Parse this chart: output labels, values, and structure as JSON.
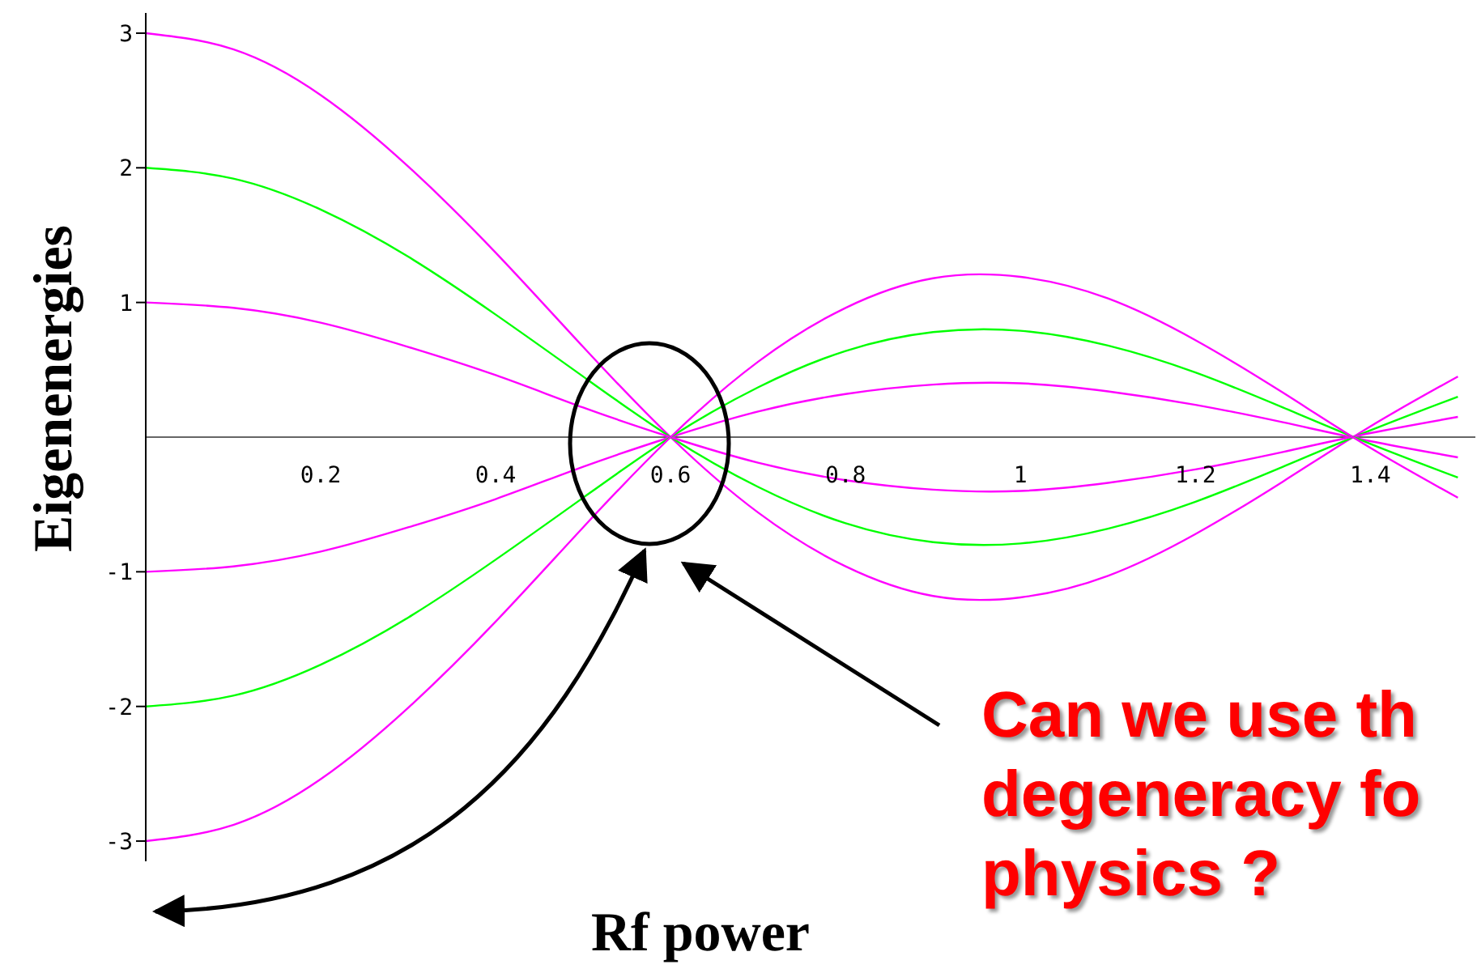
{
  "chart_data": {
    "type": "line",
    "xlabel": "Rf power",
    "ylabel": "Eigenenergies",
    "x": [
      0,
      0.1,
      0.2,
      0.3,
      0.4,
      0.5,
      0.6,
      0.7,
      0.8,
      0.9,
      1.0,
      1.1,
      1.2,
      1.3,
      1.4,
      1.5
    ],
    "series": [
      {
        "color": "#ff00ff",
        "values": [
          3,
          2.88,
          2.54,
          2.01,
          1.37,
          0.67,
          0,
          -0.56,
          -0.96,
          -1.18,
          -1.19,
          -1.03,
          -0.72,
          -0.33,
          0.08,
          0.45
        ]
      },
      {
        "color": "#00ff00",
        "values": [
          2,
          1.92,
          1.69,
          1.34,
          0.91,
          0.45,
          0,
          -0.37,
          -0.64,
          -0.78,
          -0.79,
          -0.68,
          -0.48,
          -0.22,
          0.05,
          0.3
        ]
      },
      {
        "color": "#ff00ff",
        "values": [
          1,
          0.96,
          0.85,
          0.67,
          0.46,
          0.22,
          0,
          -0.19,
          -0.32,
          -0.39,
          -0.4,
          -0.34,
          -0.24,
          -0.11,
          0.03,
          0.15
        ]
      },
      {
        "color": "#ff00ff",
        "values": [
          -1,
          -0.96,
          -0.85,
          -0.67,
          -0.46,
          -0.22,
          0,
          0.19,
          0.32,
          0.39,
          0.4,
          0.34,
          0.24,
          0.11,
          -0.03,
          -0.15
        ]
      },
      {
        "color": "#00ff00",
        "values": [
          -2,
          -1.92,
          -1.69,
          -1.34,
          -0.91,
          -0.45,
          0,
          0.37,
          0.64,
          0.78,
          0.79,
          0.68,
          0.48,
          0.22,
          -0.05,
          -0.3
        ]
      },
      {
        "color": "#ff00ff",
        "values": [
          -3,
          -2.88,
          -2.54,
          -2.01,
          -1.37,
          -0.67,
          0,
          0.56,
          0.96,
          1.18,
          1.19,
          1.03,
          0.72,
          0.33,
          -0.08,
          -0.45
        ]
      }
    ],
    "xlim": [
      0,
      1.52
    ],
    "xticks": [
      0.2,
      0.4,
      0.6,
      0.8,
      1,
      1.2,
      1.4
    ],
    "ylim": [
      -3.15,
      3.15
    ],
    "yticks": [
      -3,
      -2,
      -1,
      1,
      2,
      3
    ],
    "marker": "none",
    "line_style": "solid",
    "annotations": [
      "Can we use th\ndegeneracy fo\nphysics ?"
    ]
  }
}
